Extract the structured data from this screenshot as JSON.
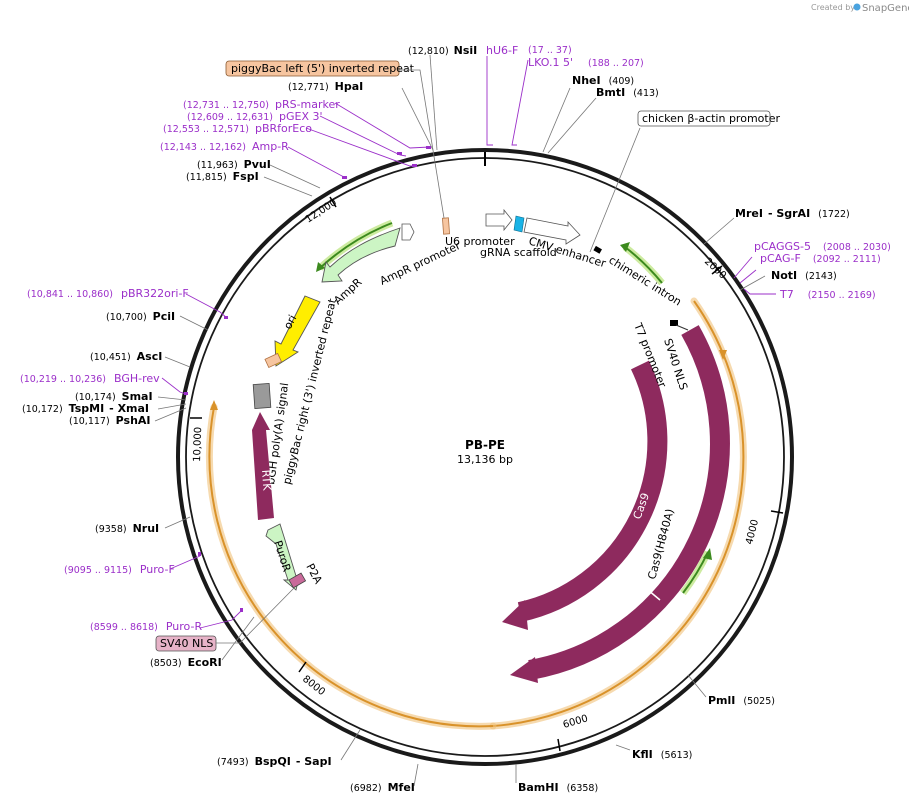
{
  "credit": {
    "prefix": "Created by",
    "brand": "SnapGene"
  },
  "plasmid": {
    "name": "PB-PE",
    "length_label": "13,136 bp"
  },
  "ticks": [
    "2000",
    "4000",
    "6000",
    "8000",
    "10,000",
    "12,000"
  ],
  "enzymes": [
    {
      "name": "NsiI",
      "pos": "(12,810)"
    },
    {
      "name": "HpaI",
      "pos": "(12,771)"
    },
    {
      "name": "PvuI",
      "pos": "(11,963)"
    },
    {
      "name": "FspI",
      "pos": "(11,815)"
    },
    {
      "name": "NheI",
      "pos": "(409)"
    },
    {
      "name": "BmtI",
      "pos": "(413)"
    },
    {
      "name": "MreI",
      "name2": "- SgrAI",
      "pos": "(1722)"
    },
    {
      "name": "NotI",
      "pos": "(2143)"
    },
    {
      "name": "PciI",
      "pos": "(10,700)"
    },
    {
      "name": "AscI",
      "pos": "(10,451)"
    },
    {
      "name": "SmaI",
      "pos": "(10,174)"
    },
    {
      "name": "TspMI",
      "name2": "- XmaI",
      "pos": "(10,172)"
    },
    {
      "name": "PshAI",
      "pos": "(10,117)"
    },
    {
      "name": "NruI",
      "pos": "(9358)"
    },
    {
      "name": "EcoRI",
      "pos": "(8503)"
    },
    {
      "name": "BspQI",
      "name2": "- SapI",
      "pos": "(7493)"
    },
    {
      "name": "MfeI",
      "pos": "(6982)"
    },
    {
      "name": "BamHI",
      "pos": "(6358)"
    },
    {
      "name": "KflI",
      "pos": "(5613)"
    },
    {
      "name": "PmlI",
      "pos": "(5025)"
    }
  ],
  "primers": [
    {
      "name": "hU6-F",
      "range": ""
    },
    {
      "name": "LKO.1 5'",
      "range": "(17 .. 37)"
    },
    {
      "name": "",
      "range": "(188 .. 207)"
    },
    {
      "name": "pRS-marker",
      "range": "(12,731 .. 12,750)"
    },
    {
      "name": "pGEX 3'",
      "range": "(12,609 .. 12,631)"
    },
    {
      "name": "pBRforEco",
      "range": "(12,553 .. 12,571)"
    },
    {
      "name": "Amp-R",
      "range": "(12,143 .. 12,162)"
    },
    {
      "name": "pCAGGS-5",
      "range": "(2008 .. 2030)"
    },
    {
      "name": "pCAG-F",
      "range": "(2092 .. 2111)"
    },
    {
      "name": "T7",
      "range": "(2150 .. 2169)"
    },
    {
      "name": "pBR322ori-F",
      "range": "(10,841 .. 10,860)"
    },
    {
      "name": "BGH-rev",
      "range": "(10,219 .. 10,236)"
    },
    {
      "name": "Puro-F",
      "range": "(9095 .. 9115)"
    },
    {
      "name": "Puro-R",
      "range": "(8599 .. 8618)"
    }
  ],
  "boxed_labels": {
    "piggybac_left": "piggyBac left (5') inverted repeat",
    "chicken_actin": "chicken β-actin promoter",
    "sv40_nls": "SV40 NLS"
  },
  "features": {
    "u6_promoter": "U6 promoter",
    "grna_scaffold": "gRNA scaffold",
    "cmv_enhancer": "CMV enhancer",
    "chimeric_intron": "chimeric intron",
    "t7_promoter": "T7 promoter",
    "sv40_nls_inner": "SV40 NLS",
    "cas9": "Cas9",
    "cas9_h840a": "Cas9(H840A)",
    "ampr_promoter": "AmpR promoter",
    "ampr": "AmpR",
    "ori": "ori",
    "piggybac_right": "piggyBac right (3') inverted repeat",
    "bgh_polya": "bGH poly(A) signal",
    "rtk": "RTK",
    "puror": "PuroR",
    "p2a": "P2A"
  },
  "colors": {
    "backbone": "#1a1a1a",
    "cas9": "#8e2a5e",
    "orange_band": "#f0c27a",
    "orange_band_stroke": "#d9922a",
    "green_arrow": "#3c8a1e",
    "green_glow": "#cdeba0",
    "ampr_fill": "#ccf5c4",
    "ori_fill": "#ffee00",
    "primer": "#9b2fc9",
    "salmon": "#f6c5a0",
    "sv40_box": "#e7b3c8",
    "u6_cyan": "#19b3e6"
  }
}
